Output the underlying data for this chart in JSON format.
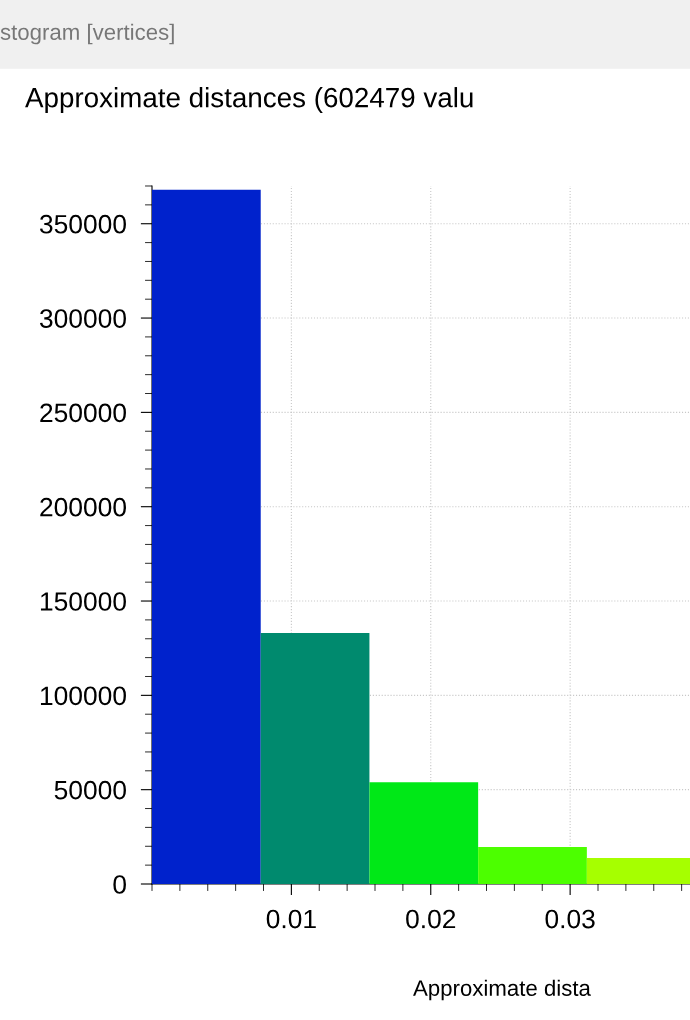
{
  "chart_data": {
    "type": "histogram",
    "title": "Approximate distances (602479 valu",
    "xlabel": "Approximate dista",
    "annotations": [
      "stogram [vertices]"
    ],
    "bins": [
      0,
      0.0078,
      0.0156,
      0.0234,
      0.0312,
      0.039
    ],
    "values": [
      368000,
      133000,
      54000,
      19600,
      13800
    ],
    "colors": [
      "#0022cc",
      "#008a6e",
      "#00e817",
      "#4cff00",
      "#a6ff00"
    ],
    "xlim": [
      0,
      0.0386
    ],
    "ylim": [
      0,
      370000
    ],
    "xticks": [
      0.01,
      0.02,
      0.03
    ],
    "yticks": [
      0,
      50000,
      100000,
      150000,
      200000,
      250000,
      300000,
      350000
    ],
    "grid": true
  }
}
